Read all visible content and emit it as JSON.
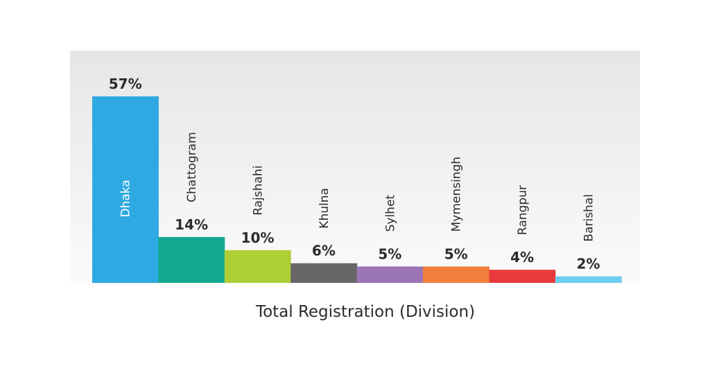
{
  "chart_data": {
    "type": "bar",
    "title": "",
    "xlabel": "Total Registration (Division)",
    "ylabel": "",
    "categories": [
      "Dhaka",
      "Chattogram",
      "Rajshahi",
      "Khulna",
      "Sylhet",
      "Mymensingh",
      "Rangpur",
      "Barishal"
    ],
    "values": [
      57,
      14,
      10,
      6,
      5,
      5,
      4,
      2
    ],
    "value_labels": [
      "57%",
      "14%",
      "10%",
      "6%",
      "5%",
      "5%",
      "4%",
      "2%"
    ],
    "colors": [
      "#2fa9e1",
      "#13a98e",
      "#aece36",
      "#666666",
      "#9b75b4",
      "#f17e3c",
      "#e83c3c",
      "#6dcdef"
    ],
    "grid": false,
    "legend": "none"
  }
}
